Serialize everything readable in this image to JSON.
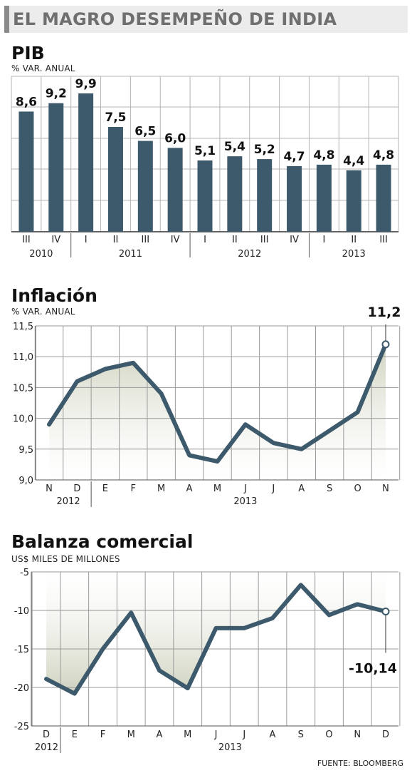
{
  "header": {
    "title": "EL MAGRO DESEMPEÑO DE INDIA"
  },
  "source": "FUENTE: BLOOMBERG",
  "colors": {
    "bar": "#3d5a6c",
    "line": "#3d5a6c",
    "grid": "#9a9a9a",
    "area_top": "#c9ccb6",
    "area_bottom": "#ffffff"
  },
  "chart_data": [
    {
      "type": "bar",
      "title": "PIB",
      "ylabel": "% VAR. ANUAL",
      "categories": [
        "III",
        "IV",
        "I",
        "II",
        "III",
        "IV",
        "I",
        "II",
        "III",
        "IV",
        "I",
        "II",
        "III"
      ],
      "years": [
        {
          "label": "2010",
          "from": 0,
          "to": 1
        },
        {
          "label": "2011",
          "from": 2,
          "to": 5
        },
        {
          "label": "2012",
          "from": 6,
          "to": 9
        },
        {
          "label": "2013",
          "from": 10,
          "to": 12
        }
      ],
      "values": [
        8.6,
        9.2,
        9.9,
        7.5,
        6.5,
        6.0,
        5.1,
        5.4,
        5.2,
        4.7,
        4.8,
        4.4,
        4.8
      ],
      "value_labels": [
        "8,6",
        "9,2",
        "9,9",
        "7,5",
        "6,5",
        "6,0",
        "5,1",
        "5,4",
        "5,2",
        "4,7",
        "4,8",
        "4,4",
        "4,8"
      ]
    },
    {
      "type": "line",
      "title": "Inflación",
      "ylabel": "% VAR. ANUAL",
      "categories": [
        "N",
        "D",
        "E",
        "F",
        "M",
        "A",
        "M",
        "J",
        "J",
        "A",
        "S",
        "O",
        "N"
      ],
      "years": [
        {
          "label": "2012",
          "from": 0,
          "to": 1
        },
        {
          "label": "2013",
          "from": 2,
          "to": 12
        }
      ],
      "values": [
        9.9,
        10.6,
        10.8,
        10.9,
        10.4,
        9.4,
        9.3,
        9.9,
        9.6,
        9.5,
        9.8,
        10.1,
        11.2
      ],
      "ylim": [
        9.0,
        11.5
      ],
      "yticks": [
        "9,0",
        "9,5",
        "10,0",
        "10,5",
        "11,0",
        "11,5"
      ],
      "last_label": "11,2"
    },
    {
      "type": "line",
      "title": "Balanza comercial",
      "ylabel": "US$ MILES DE MILLONES",
      "categories": [
        "D",
        "E",
        "F",
        "M",
        "A",
        "M",
        "J",
        "J",
        "A",
        "S",
        "O",
        "N",
        "D"
      ],
      "years": [
        {
          "label": "2012",
          "from": 0,
          "to": 0
        },
        {
          "label": "2013",
          "from": 1,
          "to": 12
        }
      ],
      "values": [
        -18.9,
        -20.8,
        -15.0,
        -10.3,
        -17.8,
        -20.1,
        -12.3,
        -12.3,
        -11.0,
        -6.7,
        -10.6,
        -9.2,
        -10.14
      ],
      "ylim": [
        -25,
        -5
      ],
      "yticks": [
        "-25",
        "-20",
        "-15",
        "-10",
        "-5"
      ],
      "last_label": "-10,14"
    }
  ]
}
